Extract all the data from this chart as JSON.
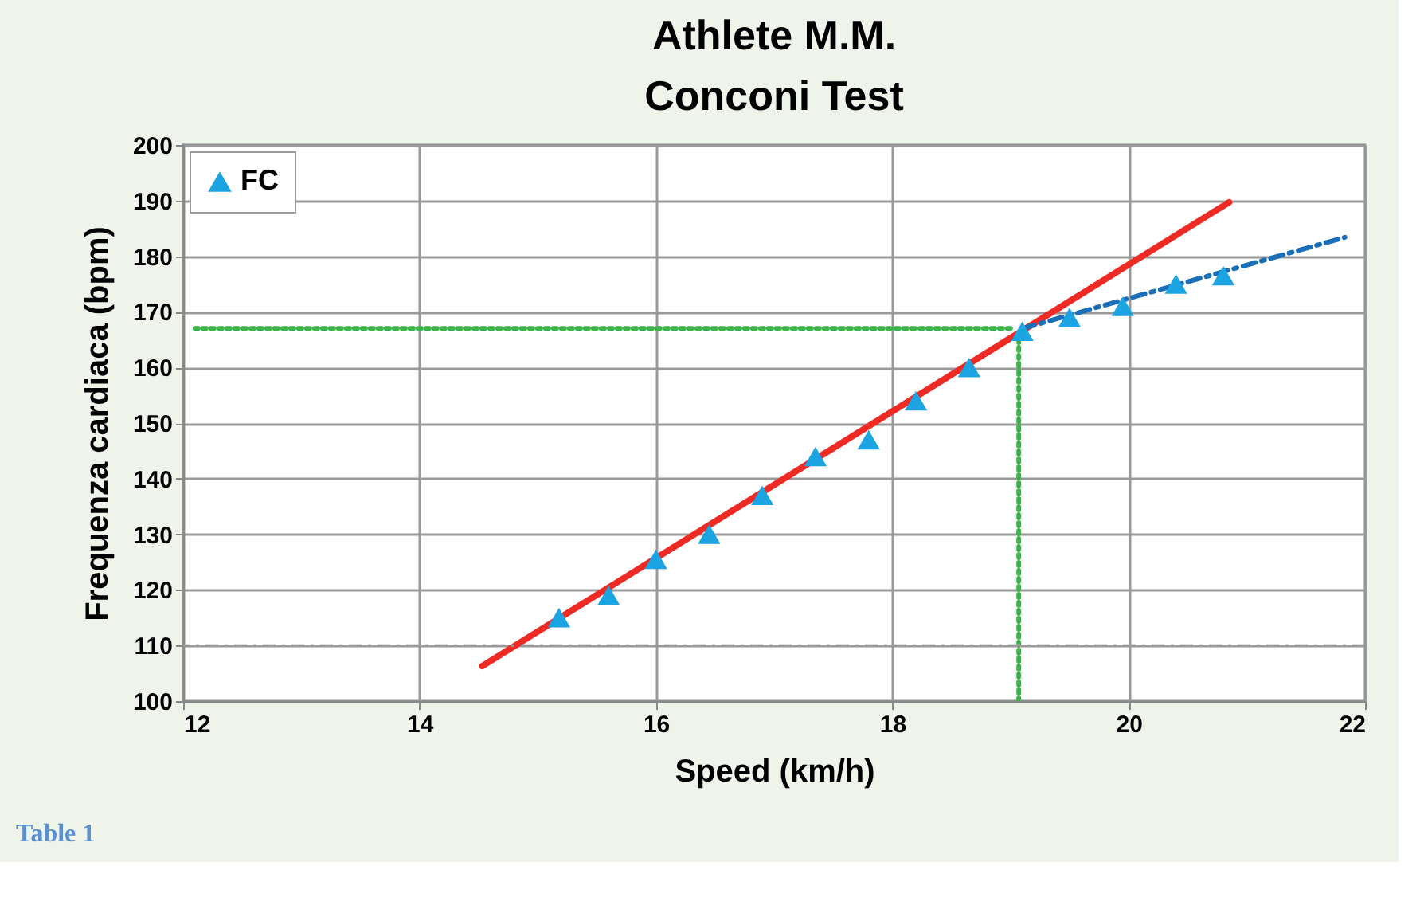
{
  "chart_data": {
    "type": "scatter",
    "title": [
      "Athlete M.M.",
      "Conconi Test"
    ],
    "xlabel": "Speed (km/h)",
    "ylabel": "Frequenza cardiaca (bpm)",
    "xlim": [
      12,
      22
    ],
    "xticks": [
      12,
      14,
      16,
      18,
      20,
      22
    ],
    "ylim": [
      100,
      200
    ],
    "yticks": [
      100,
      110,
      120,
      130,
      140,
      150,
      160,
      170,
      180,
      190,
      200
    ],
    "grid": true,
    "legend": "top left",
    "series": [
      {
        "name": "FC",
        "color": "#1ba3e2",
        "marker": "triangle",
        "x": [
          15.18,
          15.6,
          16.0,
          16.45,
          16.9,
          17.35,
          17.8,
          18.2,
          18.65,
          19.1,
          19.5,
          19.95,
          20.4,
          20.8
        ],
        "values": [
          115,
          119,
          125.5,
          130,
          137,
          144,
          147,
          154,
          160,
          166.5,
          169,
          171,
          175,
          176.5
        ]
      },
      {
        "type": "line",
        "color": "#ee2a24",
        "line_style": "solid",
        "x": [
          14.53,
          20.85
        ],
        "values": [
          106.3,
          189.7
        ]
      },
      {
        "type": "line",
        "color": "#1a6fb8",
        "line_style": "dashed",
        "x": [
          19.1,
          21.83
        ],
        "values": [
          167,
          183.4
        ]
      },
      {
        "type": "line",
        "color": "#3cb44a",
        "line_style": "dotted",
        "x": [
          12.1,
          19.0
        ],
        "values": [
          167,
          167
        ]
      },
      {
        "type": "line",
        "color": "#3cb44a",
        "line_style": "dotted",
        "x": [
          19.07,
          19.07
        ],
        "values": [
          100,
          165
        ]
      }
    ],
    "ref_lines": [
      {
        "axis": "y",
        "value": 110,
        "color": "#999999",
        "line_style": "dashed"
      }
    ],
    "annotations": [
      "Table 1"
    ]
  }
}
